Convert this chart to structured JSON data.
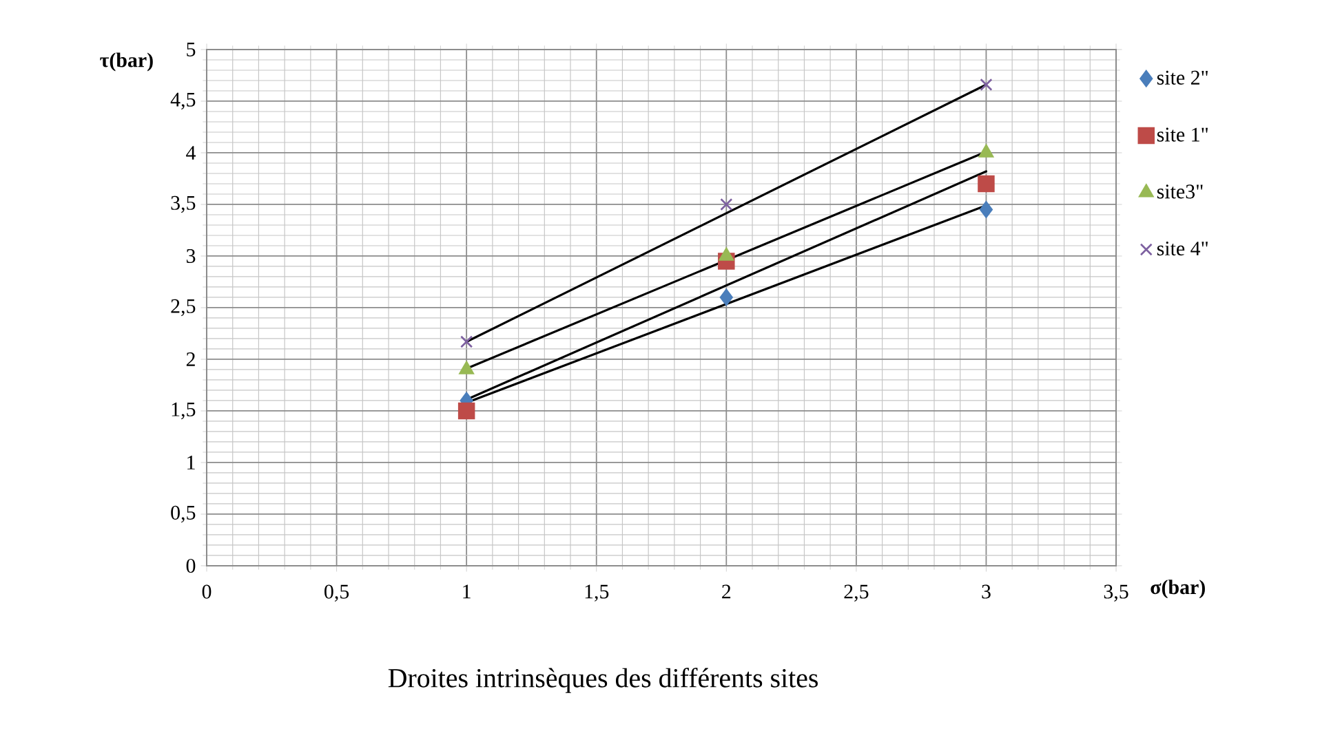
{
  "chart_data": {
    "type": "scatter",
    "title": "Droites intrinsèques des différents sites",
    "xlabel": "σ(bar)",
    "ylabel": "τ(bar)",
    "xlim": [
      0,
      3.5
    ],
    "ylim": [
      0,
      5
    ],
    "xticks": [
      0,
      {
        "value": 0.5,
        "label": "0,5"
      },
      1,
      {
        "value": 1.5,
        "label": "1,5"
      },
      2,
      {
        "value": 2.5,
        "label": "2,5"
      },
      3,
      {
        "value": 3.5,
        "label": "3,5"
      }
    ],
    "yticks": [
      0,
      {
        "value": 0.5,
        "label": "0,5"
      },
      1,
      {
        "value": 1.5,
        "label": "1,5"
      },
      2,
      {
        "value": 2.5,
        "label": "2,5"
      },
      3,
      {
        "value": 3.5,
        "label": "3,5"
      },
      4,
      {
        "value": 4.5,
        "label": "4,5"
      },
      5
    ],
    "grid": true,
    "legend": "right",
    "series": [
      {
        "name": "site 2\"",
        "color": "#4a7ebb",
        "marker": "diamond",
        "x": [
          1,
          2,
          3
        ],
        "values": [
          1.6,
          2.6,
          3.45
        ]
      },
      {
        "name": "site 1\"",
        "color": "#be4b48",
        "marker": "square",
        "x": [
          1,
          2,
          3
        ],
        "values": [
          1.5,
          2.95,
          3.7
        ]
      },
      {
        "name": "site3\"",
        "color": "#98b954",
        "marker": "triangle",
        "x": [
          1,
          2,
          3
        ],
        "values": [
          1.9,
          3.0,
          4.0
        ]
      },
      {
        "name": "site 4\"",
        "color": "#7d60a0",
        "marker": "cross",
        "x": [
          1,
          2,
          3
        ],
        "values": [
          2.17,
          3.5,
          4.66
        ]
      },
      {
        "type": "line",
        "color": "#000000",
        "marker": "none",
        "x": [
          1,
          3
        ],
        "values": [
          1.58,
          3.49
        ]
      },
      {
        "type": "line",
        "color": "#000000",
        "marker": "none",
        "x": [
          1,
          3
        ],
        "values": [
          1.61,
          3.82
        ]
      },
      {
        "type": "line",
        "color": "#000000",
        "marker": "none",
        "x": [
          1,
          3
        ],
        "values": [
          1.91,
          4.01
        ]
      },
      {
        "type": "line",
        "color": "#000000",
        "marker": "none",
        "x": [
          1,
          3
        ],
        "values": [
          2.17,
          4.66
        ]
      }
    ]
  }
}
